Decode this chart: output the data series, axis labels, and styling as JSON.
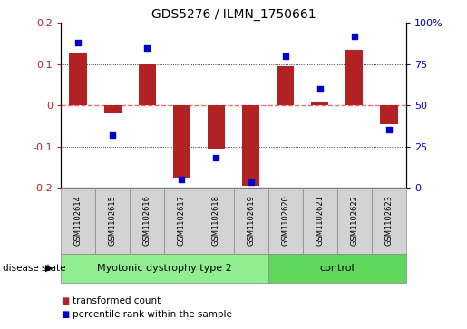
{
  "title": "GDS5276 / ILMN_1750661",
  "samples": [
    "GSM1102614",
    "GSM1102615",
    "GSM1102616",
    "GSM1102617",
    "GSM1102618",
    "GSM1102619",
    "GSM1102620",
    "GSM1102621",
    "GSM1102622",
    "GSM1102623"
  ],
  "red_values": [
    0.125,
    -0.02,
    0.1,
    -0.175,
    -0.105,
    -0.195,
    0.095,
    0.01,
    0.135,
    -0.045
  ],
  "blue_values": [
    88,
    32,
    85,
    5,
    18,
    3,
    80,
    60,
    92,
    35
  ],
  "disease_groups": [
    {
      "label": "Myotonic dystrophy type 2",
      "start": 0,
      "end": 5,
      "color": "#90EE90"
    },
    {
      "label": "control",
      "start": 6,
      "end": 9,
      "color": "#5DD85D"
    }
  ],
  "ylim_left": [
    -0.2,
    0.2
  ],
  "ylim_right": [
    0,
    100
  ],
  "yticks_left": [
    -0.2,
    -0.1,
    0.0,
    0.1,
    0.2
  ],
  "ytick_labels_left": [
    "-0.2",
    "-0.1",
    "0",
    "0.1",
    "0.2"
  ],
  "yticks_right": [
    0,
    25,
    50,
    75,
    100
  ],
  "ytick_labels_right": [
    "0",
    "25",
    "50",
    "75",
    "100%"
  ],
  "red_color": "#B22222",
  "blue_color": "#0000CD",
  "zero_line_color": "#FF6666",
  "grid_color": "#000000",
  "bar_width": 0.5,
  "legend_items": [
    {
      "color": "#B22222",
      "label": "transformed count"
    },
    {
      "color": "#0000CD",
      "label": "percentile rank within the sample"
    }
  ],
  "disease_state_label": "disease state"
}
